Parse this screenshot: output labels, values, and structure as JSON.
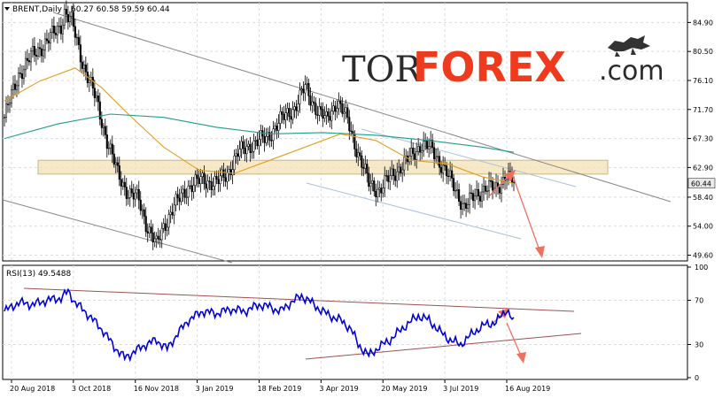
{
  "watermark": {
    "left": "TOR",
    "mid": "FOREX",
    "right": ".com",
    "icon": "bull-bear-icon"
  },
  "chart_data": [
    {
      "type": "candlestick",
      "title": "BRENT,Daily",
      "ohlc_label": "60.27 60.58 59.59 60.44",
      "last_price": "60.44",
      "ylim": [
        49.0,
        87.5
      ],
      "yticks": [
        "84.90",
        "80.50",
        "76.10",
        "71.70",
        "67.30",
        "62.90",
        "58.40",
        "54.00",
        "49.60"
      ],
      "ytick_values": [
        84.9,
        80.5,
        76.1,
        71.7,
        67.3,
        62.9,
        58.4,
        54.0,
        49.6
      ],
      "dates": [
        "20 Aug 2018",
        "3 Oct 2018",
        "16 Nov 2018",
        "3 Jan 2019",
        "18 Feb 2019",
        "3 Apr 2019",
        "20 May 2019",
        "3 Jul 2019",
        "16 Aug 2019"
      ],
      "anchors": [
        [
          0,
          70.5
        ],
        [
          8,
          77
        ],
        [
          16,
          80
        ],
        [
          24,
          82
        ],
        [
          32,
          84.5
        ],
        [
          34,
          86.5
        ],
        [
          38,
          85
        ],
        [
          44,
          79
        ],
        [
          52,
          73
        ],
        [
          58,
          67
        ],
        [
          64,
          62
        ],
        [
          70,
          59
        ],
        [
          76,
          58
        ],
        [
          80,
          54.5
        ],
        [
          86,
          51
        ],
        [
          90,
          54
        ],
        [
          96,
          57
        ],
        [
          104,
          60
        ],
        [
          112,
          61
        ],
        [
          120,
          60.5
        ],
        [
          126,
          62
        ],
        [
          132,
          65
        ],
        [
          140,
          66.5
        ],
        [
          148,
          67.3
        ],
        [
          156,
          70
        ],
        [
          164,
          72
        ],
        [
          170,
          75
        ],
        [
          176,
          72
        ],
        [
          182,
          70
        ],
        [
          188,
          73
        ],
        [
          194,
          70
        ],
        [
          200,
          65
        ],
        [
          206,
          60.5
        ],
        [
          212,
          59.5
        ],
        [
          220,
          62
        ],
        [
          228,
          64
        ],
        [
          236,
          66.5
        ],
        [
          242,
          65.5
        ],
        [
          248,
          63
        ],
        [
          254,
          60
        ],
        [
          260,
          57
        ],
        [
          266,
          58.5
        ],
        [
          272,
          60
        ],
        [
          278,
          59.5
        ],
        [
          284,
          62
        ],
        [
          288,
          60.4
        ]
      ],
      "series": [
        {
          "name": "",
          "color": "#e0a020",
          "points": [
            [
              0,
              73
            ],
            [
              20,
              76
            ],
            [
              40,
              78
            ],
            [
              55,
              75
            ],
            [
              70,
              71
            ],
            [
              90,
              66
            ],
            [
              110,
              62.5
            ],
            [
              130,
              62
            ],
            [
              150,
              64
            ],
            [
              170,
              66
            ],
            [
              190,
              68
            ],
            [
              210,
              67
            ],
            [
              230,
              64
            ],
            [
              250,
              63.5
            ],
            [
              270,
              61.5
            ],
            [
              288,
              60.5
            ]
          ]
        },
        {
          "name": "",
          "color": "#1e9e8a",
          "points": [
            [
              0,
              67.3
            ],
            [
              30,
              69.5
            ],
            [
              60,
              71
            ],
            [
              90,
              70.5
            ],
            [
              120,
              69
            ],
            [
              150,
              68
            ],
            [
              180,
              68.2
            ],
            [
              210,
              67.8
            ],
            [
              240,
              67
            ],
            [
              270,
              66
            ],
            [
              288,
              65.2
            ]
          ]
        }
      ],
      "zone": {
        "from": 61.9,
        "to": 64.0
      }
    },
    {
      "type": "line",
      "title": "RSI(13) 49.5488",
      "ylim": [
        0,
        100
      ],
      "yticks": [
        "100",
        "70",
        "30",
        "0"
      ],
      "ytick_values": [
        100,
        70,
        30,
        0
      ],
      "series": [
        {
          "name": "",
          "color": "#0000dd",
          "points": [
            [
              0,
              60
            ],
            [
              8,
              68
            ],
            [
              16,
              66
            ],
            [
              24,
              70
            ],
            [
              32,
              72
            ],
            [
              36,
              78
            ],
            [
              40,
              68
            ],
            [
              48,
              56
            ],
            [
              56,
              42
            ],
            [
              62,
              28
            ],
            [
              68,
              18
            ],
            [
              74,
              24
            ],
            [
              80,
              30
            ],
            [
              86,
              34
            ],
            [
              92,
              26
            ],
            [
              98,
              40
            ],
            [
              104,
              52
            ],
            [
              112,
              60
            ],
            [
              120,
              58
            ],
            [
              128,
              62
            ],
            [
              136,
              60
            ],
            [
              144,
              66
            ],
            [
              150,
              64
            ],
            [
              156,
              60
            ],
            [
              162,
              68
            ],
            [
              168,
              74
            ],
            [
              172,
              70
            ],
            [
              178,
              62
            ],
            [
              184,
              56
            ],
            [
              190,
              52
            ],
            [
              196,
              44
            ],
            [
              200,
              30
            ],
            [
              206,
              20
            ],
            [
              212,
              28
            ],
            [
              218,
              34
            ],
            [
              226,
              46
            ],
            [
              234,
              56
            ],
            [
              240,
              52
            ],
            [
              246,
              42
            ],
            [
              252,
              34
            ],
            [
              258,
              30
            ],
            [
              266,
              42
            ],
            [
              272,
              48
            ],
            [
              278,
              50
            ],
            [
              284,
              62
            ],
            [
              288,
              49.5
            ]
          ]
        }
      ]
    }
  ]
}
